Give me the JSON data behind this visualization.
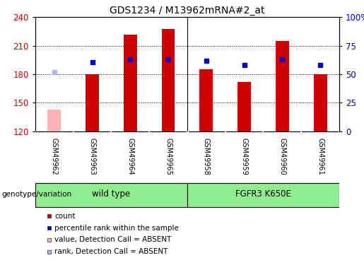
{
  "title": "GDS1234 / M13962mRNA#2_at",
  "samples": [
    "GSM49962",
    "GSM49963",
    "GSM49964",
    "GSM49965",
    "GSM49958",
    "GSM49959",
    "GSM49960",
    "GSM49961"
  ],
  "bar_values": [
    143,
    180,
    222,
    228,
    185,
    172,
    215,
    180
  ],
  "bar_colors": [
    "#ffb3b3",
    "#cc0000",
    "#cc0000",
    "#cc0000",
    "#cc0000",
    "#cc0000",
    "#cc0000",
    "#cc0000"
  ],
  "rank_values": [
    182,
    193,
    196,
    196,
    194,
    190,
    196,
    190
  ],
  "rank_colors": [
    "#b3b3ff",
    "#0000cc",
    "#0000cc",
    "#0000cc",
    "#0000cc",
    "#0000cc",
    "#0000cc",
    "#0000cc"
  ],
  "ylim_left": [
    120,
    240
  ],
  "yticks_left": [
    120,
    150,
    180,
    210,
    240
  ],
  "ylim_right": [
    0,
    100
  ],
  "yticks_right": [
    0,
    25,
    50,
    75,
    100
  ],
  "ytick_labels_right": [
    "0",
    "25",
    "50",
    "75",
    "100%"
  ],
  "wild_type_count": 4,
  "fgfr3_count": 4,
  "wild_type_label": "wild type",
  "fgfr3_label": "FGFR3 K650E",
  "genotype_label": "genotype/variation",
  "legend_items": [
    {
      "label": "count",
      "color": "#cc0000"
    },
    {
      "label": "percentile rank within the sample",
      "color": "#0000cc"
    },
    {
      "label": "value, Detection Call = ABSENT",
      "color": "#ffb3b3"
    },
    {
      "label": "rank, Detection Call = ABSENT",
      "color": "#b3b3ff"
    }
  ],
  "bar_width": 0.35,
  "rank_marker_size": 5,
  "grid_color": "black",
  "bg_color": "white",
  "plot_bg_color": "white",
  "left_ylabel_color": "#cc0000",
  "right_ylabel_color": "#0000cc",
  "gray_box_color": "#d0d0d0",
  "green_color": "#90ee90"
}
